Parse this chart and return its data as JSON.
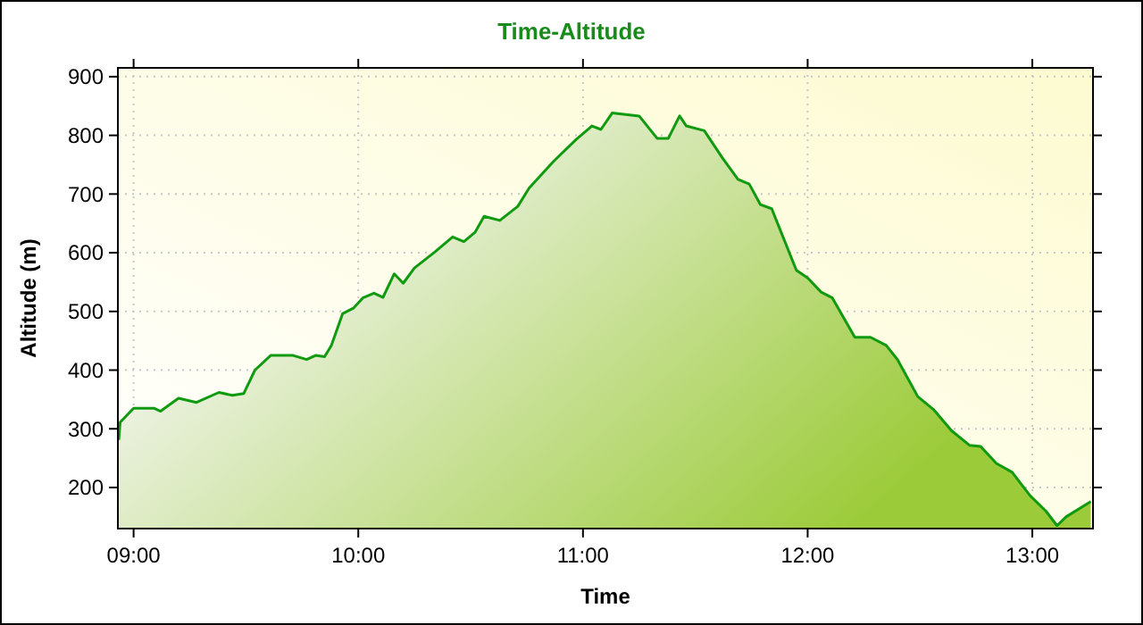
{
  "chart_data": {
    "type": "area",
    "title": "Time-Altitude",
    "xlabel": "Time",
    "ylabel": "Altitude (m)",
    "x": [
      8.934,
      8.94,
      9.0,
      9.09,
      9.12,
      9.2,
      9.28,
      9.38,
      9.44,
      9.49,
      9.54,
      9.61,
      9.71,
      9.77,
      9.81,
      9.85,
      9.88,
      9.93,
      9.98,
      10.02,
      10.07,
      10.11,
      10.16,
      10.2,
      10.25,
      10.34,
      10.42,
      10.47,
      10.52,
      10.56,
      10.63,
      10.71,
      10.76,
      10.87,
      10.97,
      11.04,
      11.08,
      11.13,
      11.25,
      11.33,
      11.38,
      11.43,
      11.46,
      11.54,
      11.62,
      11.69,
      11.74,
      11.79,
      11.84,
      11.95,
      12.0,
      12.06,
      12.11,
      12.21,
      12.28,
      12.35,
      12.4,
      12.49,
      12.56,
      12.64,
      12.72,
      12.77,
      12.84,
      12.91,
      12.99,
      13.06,
      13.11,
      13.15,
      13.26
    ],
    "series": [
      {
        "color": "#109a10",
        "values": [
          281,
          311,
          335,
          335,
          330,
          352,
          345,
          362,
          357,
          360,
          400,
          425,
          425,
          418,
          425,
          423,
          442,
          496,
          506,
          523,
          531,
          524,
          564,
          548,
          574,
          601,
          627,
          619,
          635,
          662,
          655,
          679,
          710,
          756,
          793,
          816,
          810,
          838,
          833,
          795,
          795,
          833,
          816,
          808,
          762,
          725,
          717,
          682,
          675,
          570,
          557,
          533,
          523,
          456,
          456,
          442,
          418,
          355,
          333,
          297,
          272,
          270,
          241,
          226,
          186,
          160,
          135,
          150,
          176
        ]
      }
    ],
    "xlim": [
      8.93,
      13.27
    ],
    "xticks": [
      {
        "value": 9,
        "label": "09:00"
      },
      {
        "value": 10,
        "label": "10:00"
      },
      {
        "value": 11,
        "label": "11:00"
      },
      {
        "value": 12,
        "label": "12:00"
      },
      {
        "value": 13,
        "label": "13:00"
      }
    ],
    "ylim": [
      130,
      915
    ],
    "yticks": [
      200,
      300,
      400,
      500,
      600,
      700,
      800,
      900
    ],
    "grid": true
  }
}
